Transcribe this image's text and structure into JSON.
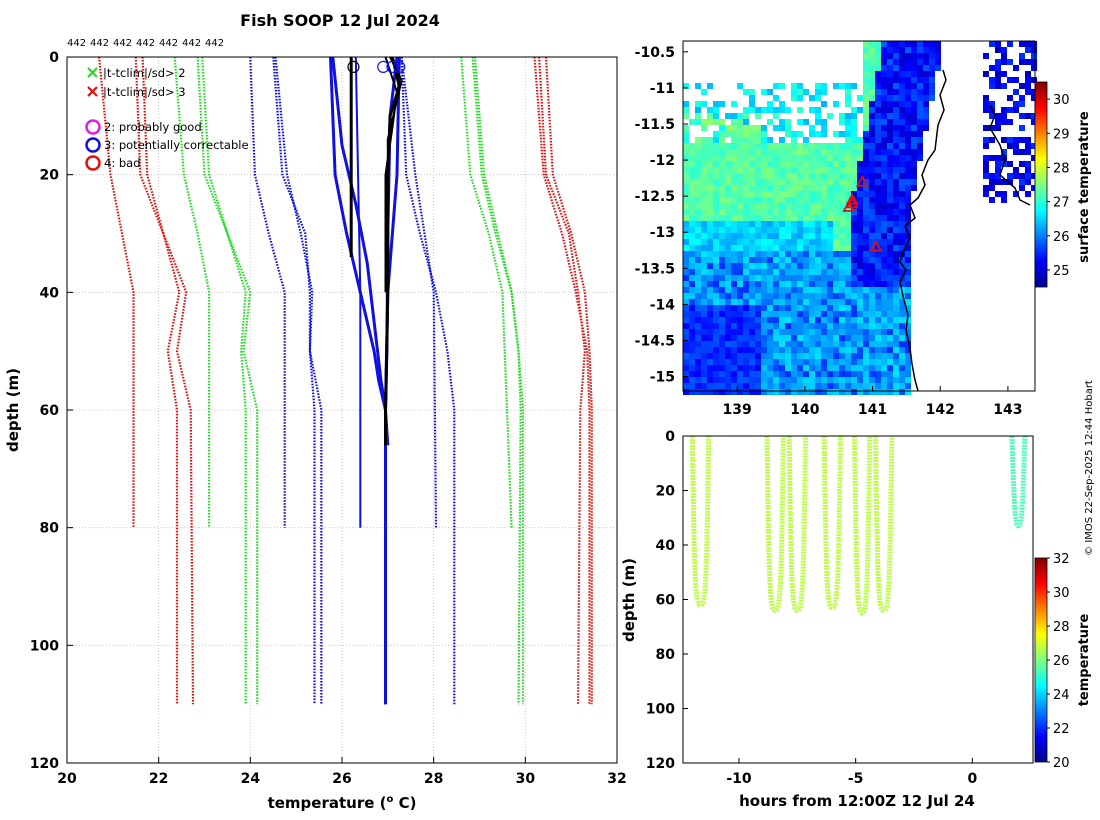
{
  "colors": {
    "flag_green": "#22dd22",
    "flag_red": "#e01010",
    "flag_magenta": "#e020e0",
    "flag_blue": "#1010e0",
    "profile_black": "#000000",
    "profile_blue": "#0000ee",
    "grid": "#bbbbbb"
  },
  "chart_data": [
    {
      "type": "line",
      "id": "profiles",
      "title": "Fish SOOP 12 Jul 2024",
      "xlabel": "temperature (° C)",
      "ylabel": "depth (m)",
      "xlim": [
        20,
        32
      ],
      "ylim": [
        120,
        0
      ],
      "xticks": [
        "20",
        "22",
        "24",
        "26",
        "28",
        "30",
        "32"
      ],
      "yticks": [
        "0",
        "20",
        "40",
        "60",
        "80",
        "100",
        "120"
      ],
      "profile_count_labels": [
        "442",
        "442",
        "442",
        "442",
        "442",
        "442",
        "442"
      ],
      "legend": [
        {
          "marker": "x",
          "color": "green",
          "label": "|t-tclim|/sd> 2"
        },
        {
          "marker": "x",
          "color": "red",
          "label": "|t-tclim|/sd> 3"
        },
        {
          "marker": "o",
          "color": "magenta",
          "label": "2: probably good"
        },
        {
          "marker": "o",
          "color": "blue",
          "label": "3: potentially correctable"
        },
        {
          "marker": "o",
          "color": "red",
          "label": "4: bad"
        }
      ],
      "climatology_lines": [
        {
          "name": "clim-red-1",
          "color": "red",
          "depth": [
            0,
            20,
            40,
            80
          ],
          "temp": [
            20.7,
            20.95,
            21.45,
            21.45
          ]
        },
        {
          "name": "clim-red-2",
          "color": "red",
          "depth": [
            0,
            20,
            30,
            40,
            50,
            60,
            110
          ],
          "temp": [
            21.5,
            21.6,
            22.1,
            22.6,
            22.4,
            22.7,
            22.75
          ]
        },
        {
          "name": "clim-red-3",
          "color": "red",
          "depth": [
            0,
            20,
            30,
            40,
            50,
            60,
            110
          ],
          "temp": [
            21.65,
            21.75,
            22.1,
            22.45,
            22.2,
            22.4,
            22.4
          ]
        },
        {
          "name": "clim-green-1",
          "color": "green",
          "depth": [
            0,
            20,
            30,
            40,
            80
          ],
          "temp": [
            22.35,
            22.55,
            22.85,
            23.1,
            23.1
          ]
        },
        {
          "name": "clim-green-2",
          "color": "green",
          "depth": [
            0,
            20,
            30,
            40,
            50,
            60,
            110
          ],
          "temp": [
            22.85,
            23.0,
            23.5,
            24.0,
            23.85,
            24.15,
            24.15
          ]
        },
        {
          "name": "clim-green-3",
          "color": "green",
          "depth": [
            0,
            20,
            30,
            40,
            50,
            60,
            110
          ],
          "temp": [
            22.95,
            23.1,
            23.5,
            23.9,
            23.8,
            23.9,
            23.9
          ]
        },
        {
          "name": "clim-blue-1",
          "color": "blue",
          "depth": [
            0,
            20,
            30,
            40,
            80
          ],
          "temp": [
            24.0,
            24.1,
            24.4,
            24.75,
            24.75
          ]
        },
        {
          "name": "clim-blue-2",
          "color": "blue",
          "depth": [
            0,
            20,
            30,
            40,
            50,
            60,
            110
          ],
          "temp": [
            24.5,
            24.7,
            25.2,
            25.3,
            25.3,
            25.55,
            25.55
          ]
        },
        {
          "name": "clim-blue-3",
          "color": "blue",
          "depth": [
            0,
            20,
            30,
            40,
            50,
            60,
            110
          ],
          "temp": [
            24.55,
            24.8,
            25.1,
            25.35,
            25.3,
            25.4,
            25.4
          ]
        },
        {
          "name": "clim-blue-4",
          "color": "blue",
          "depth": [
            0,
            20,
            40,
            80
          ],
          "temp": [
            27.3,
            27.6,
            28.0,
            28.05
          ]
        },
        {
          "name": "clim-blue-5",
          "color": "blue",
          "depth": [
            0,
            20,
            30,
            40,
            50,
            60,
            110
          ],
          "temp": [
            27.3,
            27.4,
            27.7,
            28.05,
            28.3,
            28.45,
            28.45
          ]
        },
        {
          "name": "clim-green-4",
          "color": "green",
          "depth": [
            0,
            20,
            30,
            40,
            80
          ],
          "temp": [
            28.6,
            28.8,
            29.2,
            29.5,
            29.7
          ]
        },
        {
          "name": "clim-green-5",
          "color": "green",
          "depth": [
            0,
            20,
            30,
            40,
            50,
            60,
            110
          ],
          "temp": [
            28.85,
            29.05,
            29.35,
            29.7,
            29.85,
            29.95,
            29.95
          ]
        },
        {
          "name": "clim-green-6",
          "color": "green",
          "depth": [
            0,
            20,
            30,
            40,
            50,
            60,
            110
          ],
          "temp": [
            28.9,
            29.1,
            29.4,
            29.7,
            29.85,
            29.9,
            29.85
          ]
        },
        {
          "name": "clim-red-4",
          "color": "red",
          "depth": [
            0,
            20,
            30,
            40,
            50,
            60,
            110
          ],
          "temp": [
            30.2,
            30.4,
            30.8,
            31.1,
            31.35,
            31.4,
            31.4
          ]
        },
        {
          "name": "clim-red-5",
          "color": "red",
          "depth": [
            0,
            20,
            30,
            40,
            50,
            60,
            110
          ],
          "temp": [
            30.3,
            30.45,
            30.95,
            31.15,
            31.3,
            31.2,
            31.15
          ]
        },
        {
          "name": "clim-red-6",
          "color": "red",
          "depth": [
            0,
            20,
            30,
            40,
            50,
            60,
            110
          ],
          "temp": [
            30.45,
            30.6,
            31.0,
            31.3,
            31.4,
            31.45,
            31.45
          ]
        }
      ],
      "profiles": [
        {
          "name": "profile-blue-1",
          "color": "blue",
          "width": 3,
          "depth": [
            0,
            20,
            30,
            40,
            50,
            55,
            60,
            66
          ],
          "temp": [
            25.75,
            25.85,
            26.1,
            26.4,
            26.7,
            26.8,
            26.95,
            27.0
          ]
        },
        {
          "name": "profile-blue-2",
          "color": "blue",
          "width": 3,
          "depth": [
            0,
            15,
            25,
            35,
            45,
            55,
            60
          ],
          "temp": [
            25.8,
            26.0,
            26.3,
            26.55,
            26.7,
            26.85,
            26.95
          ]
        },
        {
          "name": "profile-blue-3",
          "color": "blue",
          "width": 2,
          "depth": [
            0,
            40,
            80
          ],
          "temp": [
            26.3,
            26.4,
            26.4
          ]
        },
        {
          "name": "profile-blue-4",
          "color": "blue",
          "width": 3,
          "depth": [
            0,
            20,
            40,
            60,
            110
          ],
          "temp": [
            27.25,
            27.2,
            27.0,
            26.95,
            26.95
          ]
        },
        {
          "name": "profile-blue-5",
          "color": "blue",
          "width": 3,
          "depth": [
            0,
            10,
            30,
            50,
            60,
            110
          ],
          "temp": [
            27.2,
            27.05,
            27.0,
            26.98,
            26.95,
            26.95
          ]
        },
        {
          "name": "profile-black-1",
          "color": "black",
          "width": 3,
          "depth": [
            0,
            20,
            34
          ],
          "temp": [
            26.2,
            26.2,
            26.2
          ]
        },
        {
          "name": "profile-black-2",
          "color": "black",
          "width": 3,
          "depth": [
            0,
            5,
            10,
            20,
            40,
            60,
            66
          ],
          "temp": [
            27.1,
            27.25,
            27.05,
            27.0,
            27.0,
            26.95,
            26.95
          ]
        },
        {
          "name": "profile-black-3",
          "color": "black",
          "width": 2,
          "depth": [
            0,
            6,
            12,
            20,
            40
          ],
          "temp": [
            26.95,
            27.2,
            27.1,
            26.95,
            26.95
          ]
        },
        {
          "name": "profile-black-4",
          "color": "black",
          "width": 2,
          "depth": [
            0,
            4,
            9,
            14,
            20,
            30
          ],
          "temp": [
            27.05,
            27.3,
            27.15,
            27.0,
            27.0,
            27.0
          ]
        }
      ],
      "surface_flags": [
        {
          "temp": 26.25,
          "depth": 1
        },
        {
          "temp": 26.9,
          "depth": 1
        },
        {
          "temp": 27.1,
          "depth": 1
        },
        {
          "temp": 27.25,
          "depth": 1
        }
      ]
    },
    {
      "type": "heatmap",
      "id": "sst-map",
      "colorbar_label": "surface temperature",
      "colorbar_ticks": [
        "25",
        "26",
        "27",
        "28",
        "29",
        "30"
      ],
      "colorbar_range": [
        24.5,
        30.5
      ],
      "xticks": [
        "139",
        "140",
        "141",
        "142",
        "143"
      ],
      "yticks": [
        "-10.5",
        "-11",
        "-11.5",
        "-12",
        "-12.5",
        "-13",
        "-13.5",
        "-14",
        "-14.5",
        "-15"
      ],
      "xlim": [
        138.2,
        143.4
      ],
      "ylim": [
        -15.2,
        -10.35
      ],
      "stations": [
        {
          "lon": 140.85,
          "lat": -12.3
        },
        {
          "lon": 140.7,
          "lat": -12.55
        },
        {
          "lon": 140.65,
          "lat": -12.65
        },
        {
          "lon": 140.7,
          "lat": -12.6
        },
        {
          "lon": 141.05,
          "lat": -13.2
        }
      ]
    },
    {
      "type": "scatter",
      "id": "time-depth",
      "xlabel": "hours from 12:00Z 12 Jul 24",
      "ylabel": "depth (m)",
      "xlim": [
        -12.4,
        2.6
      ],
      "ylim": [
        120,
        0
      ],
      "xticks": [
        "-10",
        "-5",
        "0"
      ],
      "yticks": [
        "0",
        "20",
        "40",
        "60",
        "80",
        "100",
        "120"
      ],
      "colorbar_label": "temperature",
      "colorbar_ticks": [
        "20",
        "22",
        "24",
        "26",
        "28",
        "30",
        "32"
      ],
      "colorbar_range": [
        20,
        32
      ],
      "casts": [
        {
          "start": -12.0,
          "end": -11.3,
          "max_depth": 62,
          "temp": 26.7
        },
        {
          "start": -8.8,
          "end": -8.1,
          "max_depth": 64,
          "temp": 26.7
        },
        {
          "start": -7.85,
          "end": -7.15,
          "max_depth": 64,
          "temp": 26.7
        },
        {
          "start": -6.35,
          "end": -5.65,
          "max_depth": 63,
          "temp": 26.7
        },
        {
          "start": -5.05,
          "end": -4.4,
          "max_depth": 65,
          "temp": 26.7
        },
        {
          "start": -4.15,
          "end": -3.45,
          "max_depth": 64,
          "temp": 26.7
        },
        {
          "start": 1.7,
          "end": 2.25,
          "max_depth": 33,
          "temp": 25.4
        }
      ]
    }
  ],
  "attribution": "© IMOS 22-Sep-2025 12:44 Hobart"
}
